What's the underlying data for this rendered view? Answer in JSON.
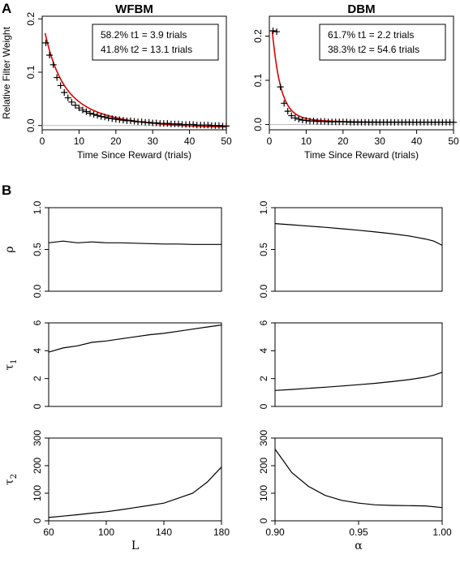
{
  "panel_labels": {
    "a": "A",
    "b": "B"
  },
  "chart_data": [
    {
      "id": "A-left",
      "type": "scatter",
      "title": "WFBM",
      "xlabel": "Time Since Reward (trials)",
      "ylabel": "Relative Filter Weight",
      "xlim": [
        0,
        50
      ],
      "ylim": [
        -0.008,
        0.205
      ],
      "xticks": [
        0,
        10,
        20,
        30,
        40,
        50
      ],
      "yticks": [
        0.0,
        0.1,
        0.2
      ],
      "ytick_labels": [
        "0.0",
        "0.1",
        "0.2"
      ],
      "annotation": [
        "58.2%  t1 = 3.9 trials",
        "41.8%  t2 = 13.1 trials"
      ],
      "fit": {
        "w1": 0.582,
        "t1": 3.9,
        "w2": 0.418,
        "t2": 13.1,
        "scale": 0.205,
        "offset": -0.0045,
        "color": "#dd0000"
      },
      "points": [
        [
          1,
          0.155
        ],
        [
          2,
          0.132
        ],
        [
          3,
          0.114
        ],
        [
          4,
          0.09
        ],
        [
          5,
          0.075
        ],
        [
          6,
          0.062
        ],
        [
          7,
          0.052
        ],
        [
          8,
          0.044
        ],
        [
          9,
          0.038
        ],
        [
          10,
          0.033
        ],
        [
          11,
          0.029
        ],
        [
          12,
          0.026
        ],
        [
          13,
          0.023
        ],
        [
          14,
          0.021
        ],
        [
          15,
          0.019
        ],
        [
          16,
          0.017
        ],
        [
          17,
          0.016
        ],
        [
          18,
          0.014
        ],
        [
          19,
          0.013
        ],
        [
          20,
          0.012
        ],
        [
          21,
          0.011
        ],
        [
          22,
          0.01
        ],
        [
          23,
          0.009
        ],
        [
          24,
          0.009
        ],
        [
          25,
          0.008
        ],
        [
          26,
          0.007
        ],
        [
          27,
          0.007
        ],
        [
          28,
          0.006
        ],
        [
          29,
          0.006
        ],
        [
          30,
          0.005
        ],
        [
          31,
          0.005
        ],
        [
          32,
          0.004
        ],
        [
          33,
          0.004
        ],
        [
          34,
          0.004
        ],
        [
          35,
          0.003
        ],
        [
          36,
          0.003
        ],
        [
          37,
          0.003
        ],
        [
          38,
          0.002
        ],
        [
          39,
          0.002
        ],
        [
          40,
          0.002
        ],
        [
          41,
          0.002
        ],
        [
          42,
          0.001
        ],
        [
          43,
          0.001
        ],
        [
          44,
          0.001
        ],
        [
          45,
          0.001
        ],
        [
          46,
          0.0
        ],
        [
          47,
          0.0
        ],
        [
          48,
          0.0
        ],
        [
          49,
          -0.001
        ],
        [
          50,
          -0.001
        ]
      ]
    },
    {
      "id": "A-right",
      "type": "scatter",
      "title": "DBM",
      "xlabel": "Time Since Reward (trials)",
      "ylabel": "",
      "xlim": [
        0,
        50
      ],
      "ylim": [
        -0.012,
        0.245
      ],
      "xticks": [
        0,
        10,
        20,
        30,
        40,
        50
      ],
      "yticks": [
        0.0,
        0.1,
        0.2
      ],
      "ytick_labels": [
        "0.0",
        "0.1",
        "0.2"
      ],
      "annotation": [
        "61.7%  t1 = 2.2 trials",
        "38.3%  t2 = 54.6 trials"
      ],
      "fit": {
        "w1": 0.617,
        "t1": 2.2,
        "w2": 0.383,
        "t2": 54.6,
        "scale": 0.44,
        "offset": -0.0015,
        "color": "#dd0000",
        "decay_override": 0.02
      },
      "points": [
        [
          1,
          0.212
        ],
        [
          2,
          0.21
        ],
        [
          3,
          0.085
        ],
        [
          4,
          0.048
        ],
        [
          5,
          0.03
        ],
        [
          6,
          0.02
        ],
        [
          7,
          0.015
        ],
        [
          8,
          0.012
        ],
        [
          9,
          0.01
        ],
        [
          10,
          0.009
        ],
        [
          11,
          0.008
        ],
        [
          12,
          0.008
        ],
        [
          13,
          0.007
        ],
        [
          14,
          0.007
        ],
        [
          15,
          0.007
        ],
        [
          16,
          0.006
        ],
        [
          17,
          0.006
        ],
        [
          18,
          0.006
        ],
        [
          19,
          0.006
        ],
        [
          20,
          0.006
        ],
        [
          21,
          0.006
        ],
        [
          22,
          0.005
        ],
        [
          23,
          0.005
        ],
        [
          24,
          0.005
        ],
        [
          25,
          0.005
        ],
        [
          26,
          0.005
        ],
        [
          27,
          0.005
        ],
        [
          28,
          0.005
        ],
        [
          29,
          0.005
        ],
        [
          30,
          0.005
        ],
        [
          31,
          0.005
        ],
        [
          32,
          0.005
        ],
        [
          33,
          0.005
        ],
        [
          34,
          0.005
        ],
        [
          35,
          0.005
        ],
        [
          36,
          0.005
        ],
        [
          37,
          0.005
        ],
        [
          38,
          0.005
        ],
        [
          39,
          0.005
        ],
        [
          40,
          0.005
        ],
        [
          41,
          0.005
        ],
        [
          42,
          0.005
        ],
        [
          43,
          0.005
        ],
        [
          44,
          0.005
        ],
        [
          45,
          0.005
        ],
        [
          46,
          0.005
        ],
        [
          47,
          0.005
        ],
        [
          48,
          0.005
        ],
        [
          49,
          0.005
        ],
        [
          50,
          0.005
        ]
      ]
    },
    {
      "id": "B-rho-L",
      "type": "line",
      "ylabel": "ρ",
      "xlim": [
        60,
        180
      ],
      "ylim": [
        0,
        1
      ],
      "yticks": [
        0.0,
        0.5,
        1.0
      ],
      "ytick_labels": [
        "0.0",
        "0.5",
        "1.0"
      ],
      "x": [
        60,
        70,
        80,
        90,
        100,
        110,
        120,
        130,
        140,
        150,
        160,
        170,
        180
      ],
      "y": [
        0.58,
        0.6,
        0.58,
        0.59,
        0.58,
        0.58,
        0.575,
        0.57,
        0.565,
        0.565,
        0.56,
        0.56,
        0.56
      ]
    },
    {
      "id": "B-rho-alpha",
      "type": "line",
      "ylabel": "",
      "xlim": [
        0.9,
        1.0
      ],
      "ylim": [
        0,
        1
      ],
      "yticks": [
        0.0,
        0.5,
        1.0
      ],
      "ytick_labels": [
        "0.0",
        "0.5",
        "1.0"
      ],
      "x": [
        0.9,
        0.91,
        0.92,
        0.93,
        0.94,
        0.95,
        0.96,
        0.97,
        0.98,
        0.99,
        0.995,
        1.0
      ],
      "y": [
        0.81,
        0.795,
        0.78,
        0.765,
        0.748,
        0.73,
        0.71,
        0.688,
        0.662,
        0.625,
        0.6,
        0.55
      ]
    },
    {
      "id": "B-tau1-L",
      "type": "line",
      "ylabel": "τ1",
      "xlim": [
        60,
        180
      ],
      "ylim": [
        0,
        6
      ],
      "yticks": [
        0,
        2,
        4,
        6
      ],
      "ytick_labels": [
        "0",
        "2",
        "4",
        "6"
      ],
      "x": [
        60,
        70,
        80,
        90,
        100,
        110,
        120,
        130,
        140,
        150,
        160,
        170,
        180
      ],
      "y": [
        3.9,
        4.2,
        4.35,
        4.6,
        4.7,
        4.85,
        5.0,
        5.15,
        5.25,
        5.4,
        5.55,
        5.7,
        5.85
      ]
    },
    {
      "id": "B-tau1-alpha",
      "type": "line",
      "ylabel": "",
      "xlim": [
        0.9,
        1.0
      ],
      "ylim": [
        0,
        6
      ],
      "yticks": [
        0,
        2,
        4,
        6
      ],
      "ytick_labels": [
        "0",
        "2",
        "4",
        "6"
      ],
      "x": [
        0.9,
        0.91,
        0.92,
        0.93,
        0.94,
        0.95,
        0.96,
        0.97,
        0.98,
        0.99,
        0.995,
        1.0
      ],
      "y": [
        1.15,
        1.22,
        1.3,
        1.38,
        1.47,
        1.56,
        1.66,
        1.78,
        1.92,
        2.1,
        2.25,
        2.45
      ]
    },
    {
      "id": "B-tau2-L",
      "type": "line",
      "ylabel": "τ2",
      "xlabel": "L",
      "xlim": [
        60,
        180
      ],
      "ylim": [
        0,
        300
      ],
      "xticks": [
        60,
        100,
        140,
        180
      ],
      "yticks": [
        0,
        100,
        200,
        300
      ],
      "ytick_labels": [
        "0",
        "100",
        "200",
        "300"
      ],
      "x": [
        60,
        70,
        80,
        90,
        100,
        110,
        120,
        130,
        140,
        150,
        160,
        170,
        180
      ],
      "y": [
        12,
        17,
        22,
        28,
        33,
        40,
        48,
        56,
        64,
        82,
        100,
        140,
        195
      ]
    },
    {
      "id": "B-tau2-alpha",
      "type": "line",
      "ylabel": "",
      "xlabel": "α",
      "xlim": [
        0.9,
        1.0
      ],
      "ylim": [
        0,
        300
      ],
      "xticks": [
        0.9,
        0.95,
        1.0
      ],
      "xtick_labels": [
        "0.90",
        "0.95",
        "1.00"
      ],
      "yticks": [
        0,
        100,
        200,
        300
      ],
      "ytick_labels": [
        "0",
        "100",
        "200",
        "300"
      ],
      "x": [
        0.9,
        0.91,
        0.92,
        0.93,
        0.94,
        0.95,
        0.96,
        0.97,
        0.98,
        0.99,
        1.0
      ],
      "y": [
        260,
        175,
        125,
        92,
        74,
        64,
        58,
        56,
        55,
        54,
        48
      ]
    }
  ]
}
